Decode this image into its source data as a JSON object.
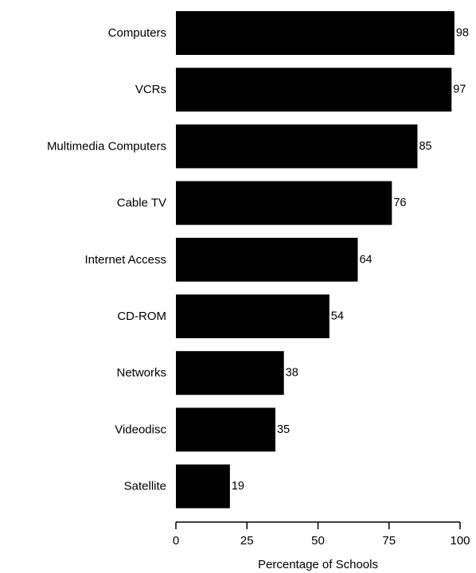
{
  "chart_data": {
    "type": "bar",
    "orientation": "horizontal",
    "categories": [
      "Computers",
      "VCRs",
      "Multimedia Computers",
      "Cable TV",
      "Internet Access",
      "CD-ROM",
      "Networks",
      "Videodisc",
      "Satellite"
    ],
    "values": [
      98,
      97,
      85,
      76,
      64,
      54,
      38,
      35,
      19
    ],
    "xlabel": "Percentage of Schools",
    "xlim": [
      0,
      100
    ],
    "xticks": [
      0,
      25,
      50,
      75,
      100
    ],
    "grid": false,
    "legend": "none",
    "bar_color": "#000000"
  }
}
